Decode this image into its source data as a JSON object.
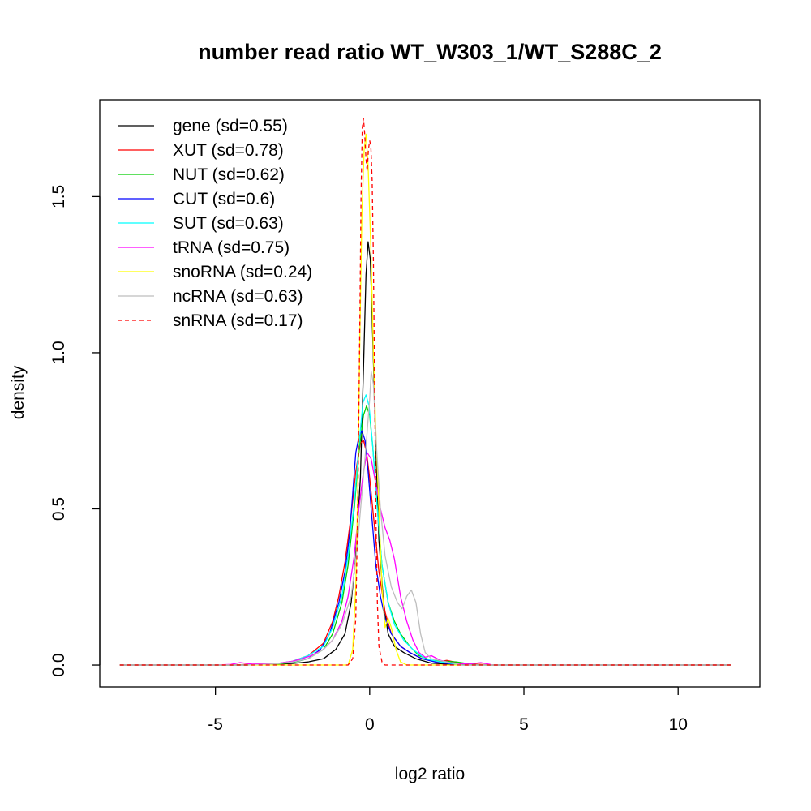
{
  "chart_data": {
    "type": "line",
    "title": "number read ratio WT_W303_1/WT_S288C_2",
    "xlabel": "log2 ratio",
    "ylabel": "density",
    "xlim": [
      -8.75,
      12.65
    ],
    "ylim": [
      -0.07,
      1.81
    ],
    "xticks": [
      -5,
      0,
      5,
      10
    ],
    "xtick_labels": [
      "-5",
      "0",
      "5",
      "10"
    ],
    "yticks": [
      0.0,
      0.5,
      1.0,
      1.5
    ],
    "ytick_labels": [
      "0.0",
      "0.5",
      "1.0",
      "1.5"
    ],
    "grid": false,
    "legend_position": "top-left",
    "series": [
      {
        "name": "gene (sd=0.55)",
        "color": "#000000",
        "dash": false,
        "points": [
          [
            -8.1,
            0
          ],
          [
            -4,
            0
          ],
          [
            -3,
            0.003
          ],
          [
            -2.5,
            0.005
          ],
          [
            -2,
            0.01
          ],
          [
            -1.5,
            0.02
          ],
          [
            -1.1,
            0.05
          ],
          [
            -0.8,
            0.1
          ],
          [
            -0.6,
            0.2
          ],
          [
            -0.45,
            0.35
          ],
          [
            -0.3,
            0.6
          ],
          [
            -0.2,
            0.95
          ],
          [
            -0.12,
            1.25
          ],
          [
            -0.05,
            1.355
          ],
          [
            0.02,
            1.3
          ],
          [
            0.1,
            1.05
          ],
          [
            0.2,
            0.7
          ],
          [
            0.3,
            0.4
          ],
          [
            0.45,
            0.2
          ],
          [
            0.6,
            0.1
          ],
          [
            0.8,
            0.06
          ],
          [
            1.1,
            0.04
          ],
          [
            1.5,
            0.02
          ],
          [
            2,
            0.006
          ],
          [
            2.5,
            0.003
          ],
          [
            4,
            0
          ],
          [
            11.7,
            0
          ]
        ]
      },
      {
        "name": "XUT (sd=0.78)",
        "color": "#ff0000",
        "dash": false,
        "points": [
          [
            -8.1,
            0
          ],
          [
            -4.5,
            0
          ],
          [
            -3,
            0.005
          ],
          [
            -2.5,
            0.012
          ],
          [
            -2,
            0.03
          ],
          [
            -1.5,
            0.07
          ],
          [
            -1.2,
            0.14
          ],
          [
            -1,
            0.22
          ],
          [
            -0.8,
            0.33
          ],
          [
            -0.6,
            0.48
          ],
          [
            -0.45,
            0.62
          ],
          [
            -0.3,
            0.71
          ],
          [
            -0.2,
            0.72
          ],
          [
            -0.1,
            0.68
          ],
          [
            0,
            0.6
          ],
          [
            0.15,
            0.45
          ],
          [
            0.3,
            0.3
          ],
          [
            0.5,
            0.17
          ],
          [
            0.7,
            0.1
          ],
          [
            1,
            0.06
          ],
          [
            1.3,
            0.04
          ],
          [
            1.7,
            0.02
          ],
          [
            2.2,
            0.01
          ],
          [
            2.5,
            0.015
          ],
          [
            3,
            0.005
          ],
          [
            4,
            0
          ],
          [
            11.7,
            0
          ]
        ]
      },
      {
        "name": "NUT (sd=0.62)",
        "color": "#00cd00",
        "dash": false,
        "points": [
          [
            -8.1,
            0
          ],
          [
            -4,
            0
          ],
          [
            -3,
            0.003
          ],
          [
            -2.5,
            0.008
          ],
          [
            -2,
            0.02
          ],
          [
            -1.5,
            0.05
          ],
          [
            -1.2,
            0.1
          ],
          [
            -0.9,
            0.2
          ],
          [
            -0.7,
            0.32
          ],
          [
            -0.5,
            0.5
          ],
          [
            -0.35,
            0.68
          ],
          [
            -0.2,
            0.8
          ],
          [
            -0.1,
            0.83
          ],
          [
            0,
            0.8
          ],
          [
            0.1,
            0.7
          ],
          [
            0.25,
            0.5
          ],
          [
            0.4,
            0.32
          ],
          [
            0.6,
            0.2
          ],
          [
            0.8,
            0.14
          ],
          [
            1,
            0.1
          ],
          [
            1.3,
            0.06
          ],
          [
            1.6,
            0.03
          ],
          [
            2,
            0.015
          ],
          [
            2.8,
            0.01
          ],
          [
            3.5,
            0
          ],
          [
            11.7,
            0
          ]
        ]
      },
      {
        "name": "CUT (sd=0.6)",
        "color": "#0000ff",
        "dash": false,
        "points": [
          [
            -8.1,
            0
          ],
          [
            -4,
            0
          ],
          [
            -3,
            0.005
          ],
          [
            -2.5,
            0.01
          ],
          [
            -2,
            0.02
          ],
          [
            -1.6,
            0.05
          ],
          [
            -1.3,
            0.1
          ],
          [
            -1,
            0.2
          ],
          [
            -0.8,
            0.3
          ],
          [
            -0.65,
            0.42
          ],
          [
            -0.55,
            0.55
          ],
          [
            -0.45,
            0.68
          ],
          [
            -0.35,
            0.73
          ],
          [
            -0.25,
            0.75
          ],
          [
            -0.15,
            0.72
          ],
          [
            -0.05,
            0.62
          ],
          [
            0.05,
            0.5
          ],
          [
            0.2,
            0.32
          ],
          [
            0.35,
            0.22
          ],
          [
            0.5,
            0.15
          ],
          [
            0.7,
            0.1
          ],
          [
            1,
            0.06
          ],
          [
            1.3,
            0.04
          ],
          [
            1.7,
            0.02
          ],
          [
            2.2,
            0.008
          ],
          [
            3,
            0
          ],
          [
            11.7,
            0
          ]
        ]
      },
      {
        "name": "SUT (sd=0.63)",
        "color": "#00ffff",
        "dash": false,
        "points": [
          [
            -8.1,
            0
          ],
          [
            -4,
            0
          ],
          [
            -3,
            0.005
          ],
          [
            -2.5,
            0.012
          ],
          [
            -2,
            0.03
          ],
          [
            -1.5,
            0.06
          ],
          [
            -1.2,
            0.12
          ],
          [
            -0.9,
            0.22
          ],
          [
            -0.7,
            0.35
          ],
          [
            -0.5,
            0.52
          ],
          [
            -0.35,
            0.7
          ],
          [
            -0.22,
            0.84
          ],
          [
            -0.12,
            0.865
          ],
          [
            -0.02,
            0.83
          ],
          [
            0.1,
            0.7
          ],
          [
            0.25,
            0.5
          ],
          [
            0.4,
            0.32
          ],
          [
            0.6,
            0.2
          ],
          [
            0.8,
            0.13
          ],
          [
            1.1,
            0.08
          ],
          [
            1.4,
            0.05
          ],
          [
            1.8,
            0.02
          ],
          [
            2.3,
            0.01
          ],
          [
            3,
            0
          ],
          [
            11.7,
            0
          ]
        ]
      },
      {
        "name": "tRNA (sd=0.75)",
        "color": "#ff00ff",
        "dash": false,
        "points": [
          [
            -8.1,
            0
          ],
          [
            -5,
            0
          ],
          [
            -4.5,
            0.002
          ],
          [
            -4.2,
            0.008
          ],
          [
            -3.8,
            0.003
          ],
          [
            -3,
            0.005
          ],
          [
            -2.5,
            0.012
          ],
          [
            -2.2,
            0.02
          ],
          [
            -1.9,
            0.03
          ],
          [
            -1.5,
            0.05
          ],
          [
            -1.2,
            0.08
          ],
          [
            -0.9,
            0.14
          ],
          [
            -0.7,
            0.22
          ],
          [
            -0.5,
            0.35
          ],
          [
            -0.35,
            0.5
          ],
          [
            -0.2,
            0.62
          ],
          [
            -0.08,
            0.68
          ],
          [
            0.05,
            0.66
          ],
          [
            0.2,
            0.58
          ],
          [
            0.35,
            0.5
          ],
          [
            0.5,
            0.44
          ],
          [
            0.65,
            0.4
          ],
          [
            0.8,
            0.34
          ],
          [
            1,
            0.22
          ],
          [
            1.2,
            0.14
          ],
          [
            1.4,
            0.08
          ],
          [
            1.6,
            0.04
          ],
          [
            1.8,
            0.025
          ],
          [
            2,
            0.03
          ],
          [
            2.3,
            0.015
          ],
          [
            2.6,
            0.008
          ],
          [
            3.2,
            0.003
          ],
          [
            3.6,
            0.008
          ],
          [
            4,
            0
          ],
          [
            11.7,
            0
          ]
        ]
      },
      {
        "name": "snoRNA (sd=0.24)",
        "color": "#ffff00",
        "dash": false,
        "points": [
          [
            -8.1,
            0
          ],
          [
            -0.7,
            0
          ],
          [
            -0.55,
            0.05
          ],
          [
            -0.45,
            0.25
          ],
          [
            -0.38,
            0.6
          ],
          [
            -0.32,
            1.05
          ],
          [
            -0.25,
            1.45
          ],
          [
            -0.18,
            1.65
          ],
          [
            -0.12,
            1.7
          ],
          [
            -0.05,
            1.6
          ],
          [
            0.05,
            1.3
          ],
          [
            0.12,
            1.0
          ],
          [
            0.2,
            0.75
          ],
          [
            0.3,
            0.5
          ],
          [
            0.4,
            0.25
          ],
          [
            0.5,
            0.12
          ],
          [
            0.6,
            0.15
          ],
          [
            0.7,
            0.12
          ],
          [
            0.85,
            0.05
          ],
          [
            1,
            0.01
          ],
          [
            1.2,
            0
          ],
          [
            11.7,
            0
          ]
        ]
      },
      {
        "name": "ncRNA (sd=0.63)",
        "color": "#bebebe",
        "dash": false,
        "points": [
          [
            -8.1,
            0
          ],
          [
            -4,
            0
          ],
          [
            -3,
            0.004
          ],
          [
            -2.5,
            0.01
          ],
          [
            -2,
            0.02
          ],
          [
            -1.5,
            0.05
          ],
          [
            -1.2,
            0.08
          ],
          [
            -0.9,
            0.13
          ],
          [
            -0.6,
            0.22
          ],
          [
            -0.4,
            0.38
          ],
          [
            -0.25,
            0.55
          ],
          [
            -0.12,
            0.7
          ],
          [
            0,
            0.85
          ],
          [
            0.05,
            0.94
          ],
          [
            0.12,
            0.9
          ],
          [
            0.22,
            0.7
          ],
          [
            0.35,
            0.5
          ],
          [
            0.5,
            0.35
          ],
          [
            0.7,
            0.25
          ],
          [
            0.9,
            0.2
          ],
          [
            1.05,
            0.18
          ],
          [
            1.2,
            0.22
          ],
          [
            1.35,
            0.24
          ],
          [
            1.5,
            0.2
          ],
          [
            1.65,
            0.1
          ],
          [
            1.8,
            0.04
          ],
          [
            2,
            0.02
          ],
          [
            2.5,
            0.01
          ],
          [
            3,
            0
          ],
          [
            11.7,
            0
          ]
        ]
      },
      {
        "name": "snRNA (sd=0.17)",
        "color": "#ff0000",
        "dash": true,
        "points": [
          [
            -8.1,
            0
          ],
          [
            -0.7,
            0
          ],
          [
            -0.55,
            0.02
          ],
          [
            -0.45,
            0.15
          ],
          [
            -0.38,
            0.55
          ],
          [
            -0.32,
            1.1
          ],
          [
            -0.28,
            1.5
          ],
          [
            -0.24,
            1.72
          ],
          [
            -0.2,
            1.75
          ],
          [
            -0.16,
            1.7
          ],
          [
            -0.12,
            1.62
          ],
          [
            -0.08,
            1.58
          ],
          [
            -0.04,
            1.65
          ],
          [
            0,
            1.68
          ],
          [
            0.04,
            1.66
          ],
          [
            0.08,
            1.55
          ],
          [
            0.12,
            1.3
          ],
          [
            0.16,
            0.9
          ],
          [
            0.2,
            0.5
          ],
          [
            0.25,
            0.2
          ],
          [
            0.3,
            0.06
          ],
          [
            0.4,
            0.01
          ],
          [
            0.5,
            0
          ],
          [
            11.7,
            0
          ]
        ]
      }
    ]
  }
}
